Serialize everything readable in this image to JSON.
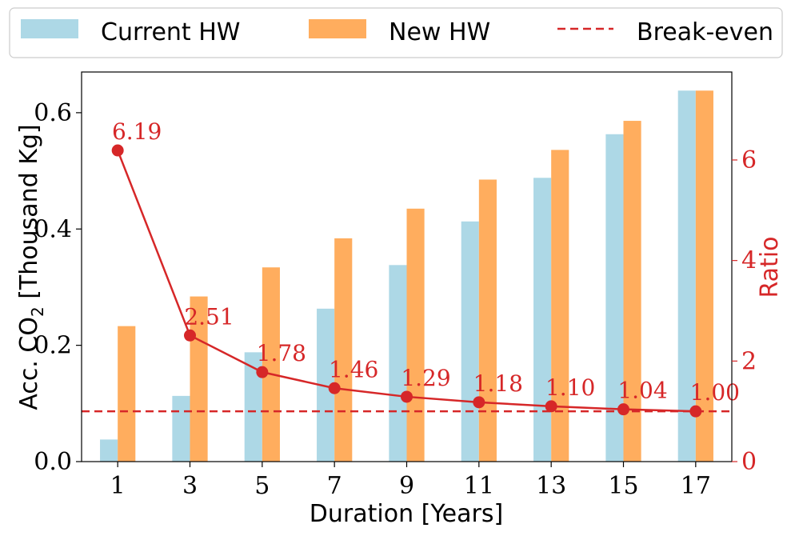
{
  "chart_data": {
    "type": "bar",
    "xlabel": "Duration [Years]",
    "ylabel_prefix": "Acc. CO",
    "ylabel_sub": "2",
    "ylabel_suffix": " [Thousand Kg]",
    "y2label": "Ratio",
    "categories": [
      "1",
      "3",
      "5",
      "7",
      "9",
      "11",
      "13",
      "15",
      "17"
    ],
    "ylim": [
      0,
      0.67
    ],
    "y2lim": [
      0,
      7.75
    ],
    "yticks": [
      "0.0",
      "0.2",
      "0.4",
      "0.6"
    ],
    "y2ticks": [
      "0",
      "2",
      "4",
      "6"
    ],
    "series": [
      {
        "name": "Current HW",
        "color": "#add8e6",
        "values": [
          0.038,
          0.113,
          0.188,
          0.263,
          0.338,
          0.413,
          0.488,
          0.563,
          0.638
        ]
      },
      {
        "name": "New HW",
        "color": "#ffad5e",
        "values": [
          0.233,
          0.284,
          0.334,
          0.384,
          0.435,
          0.485,
          0.536,
          0.586,
          0.638
        ]
      }
    ],
    "ratio": {
      "color": "#d62728",
      "values": [
        6.19,
        2.51,
        1.78,
        1.46,
        1.29,
        1.18,
        1.1,
        1.04,
        1.0
      ],
      "labels": [
        "6.19",
        "2.51",
        "1.78",
        "1.46",
        "1.29",
        "1.18",
        "1.10",
        "1.04",
        "1.00"
      ]
    },
    "break_even": {
      "name": "Break-even",
      "value": 1.0,
      "color": "#d62728"
    },
    "legend_position": "top"
  }
}
